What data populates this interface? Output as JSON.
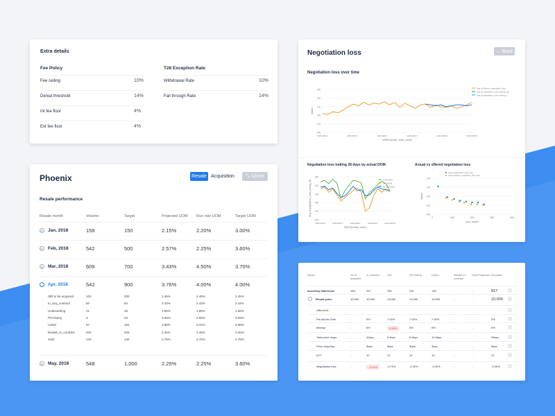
{
  "colors": {
    "accent": "#1f7ae8",
    "negative": "#d44a4a",
    "orange": "#f0a02c",
    "green": "#5cb85c",
    "teal": "#2aa7b8"
  },
  "extra": {
    "title": "Extra details",
    "fee_policy": "Fee Policy",
    "t28": "T28 Exception Rate",
    "left_rows": [
      {
        "label": "Fee ceiling",
        "value": "10%"
      },
      {
        "label": "Denial threshold",
        "value": "14%"
      },
      {
        "label": "Int fee floor",
        "value": "4%"
      },
      {
        "label": "Ext fee floor",
        "value": "4%"
      }
    ],
    "right_rows": [
      {
        "label": "Withdrawal Rate",
        "value": "10%"
      },
      {
        "label": "Fall through Rate",
        "value": "14%"
      }
    ]
  },
  "phoenix": {
    "title": "Phoenix",
    "tab_resale": "Resale",
    "tab_acquisition": "Acquisition",
    "close": "Close",
    "section": "Resale performance",
    "headers": [
      "Resale month",
      "Volume",
      "Target",
      "Projected UOM",
      "Run rate UOM",
      "Target UOM"
    ],
    "months": [
      {
        "name": "Jan, 2018",
        "cells": [
          "158",
          "150",
          "2.15%",
          "2.20%",
          "3.00%"
        ]
      },
      {
        "name": "Feb, 2018",
        "cells": [
          "542",
          "500",
          "2.57%",
          "2.25%",
          "3.60%"
        ]
      },
      {
        "name": "Mar, 2018",
        "cells": [
          "609",
          "700",
          "3.43%",
          "4.50%",
          "3.70%"
        ]
      },
      {
        "name": "Apr, 2018",
        "cells": [
          "542",
          "900",
          "3.76%",
          "4.00%",
          "4.00%"
        ]
      }
    ],
    "sub_rows": [
      {
        "label": "Still to be acquired",
        "cells": [
          "100",
          "200",
          "2.45%",
          "2.45%",
          "2.45%"
        ]
      },
      {
        "label": "In_acq_contract",
        "cells": [
          "50",
          "50",
          "2.43%",
          "2.43%",
          "2.43%"
        ]
      },
      {
        "label": "Underwriting",
        "cells": [
          "41",
          "28",
          "1.98%",
          "1.98%",
          "1.98%"
        ]
      },
      {
        "label": "Pre-listing",
        "cells": [
          "3",
          "23",
          "3.09%",
          "2.56%",
          "3.09%"
        ]
      },
      {
        "label": "Listed",
        "cells": [
          "67",
          "102",
          "3.98%",
          "3.44%",
          "3.98%"
        ]
      },
      {
        "label": "Resale_in_contract",
        "cells": [
          "203",
          "203",
          "2.46%",
          "2.46%",
          "2.46%"
        ]
      },
      {
        "label": "Sold",
        "cells": [
          "140",
          "140",
          "2.75%",
          "2.75%",
          "2.75%"
        ]
      }
    ],
    "may": {
      "name": "May, 2018",
      "cells": [
        "548",
        "1,000",
        "2.25%",
        "2.25%",
        "3.60%"
      ]
    }
  },
  "negotiation": {
    "title": "Negotiation loss",
    "back": "Back",
    "chart1_title": "Negotiation loss over time",
    "chart2_title": "Negotiation loss trailing 28 days by actual DOM",
    "chart3_title": "Actual vs offered negotiation loss"
  },
  "chart_data": [
    {
      "type": "line",
      "title": "Negotiation loss over time",
      "ylabel": "Values",
      "xlabel": "WEEK(resale_close_week)",
      "y_ticks": [
        "3%",
        "2%",
        "1%",
        "0%",
        "-1%",
        "-2%"
      ],
      "x_ticks": [
        "06/01/2017",
        "08/01/2017",
        "10/01/2017",
        "12/01/2017",
        "02/01/2018",
        "04/01/2018"
      ],
      "ylim": [
        -2,
        3
      ],
      "series": [
        {
          "name": "Avg of offered_negotiation_loss",
          "values": [
            0.2,
            0.1,
            0.4,
            0.3,
            0.6,
            1.0,
            1.3,
            1.1,
            1.5,
            1.2,
            1.4,
            1.3,
            1.6,
            1.2,
            1.5,
            0.9,
            1.4,
            1.1,
            0.8,
            1.2,
            1.3,
            0.9,
            1.2,
            1.0,
            0.9,
            1.1,
            0.8,
            1.0,
            1.2,
            1.5
          ]
        },
        {
          "name": "Avg of negotiation_loss_trailing_28",
          "values": [
            null,
            null,
            null,
            null,
            null,
            null,
            null,
            null,
            null,
            null,
            null,
            null,
            null,
            null,
            null,
            null,
            null,
            null,
            null,
            null,
            1.3,
            1.2,
            1.1,
            1.2,
            1.0,
            1.1,
            1.2,
            1.2,
            1.1,
            1.2
          ]
        },
        {
          "name": "Avg of negotiation_loss_trailing_7",
          "values": [
            null,
            null,
            null,
            null,
            null,
            null,
            null,
            null,
            null,
            null,
            null,
            null,
            null,
            null,
            null,
            null,
            null,
            null,
            null,
            null,
            null,
            null,
            null,
            null,
            null,
            null,
            null,
            null,
            null,
            null
          ]
        }
      ]
    },
    {
      "type": "line",
      "title": "Negotiation loss trailing 28 days by actual DOM",
      "ylabel": "Avg of negotiation_loss_trailing_28",
      "xlabel": "WEEK(resale_week)",
      "y_ticks": [
        "3%",
        "2%",
        "1%",
        "0%",
        "-1%",
        "-2%"
      ],
      "x_ticks": [
        "06/01/2017",
        "08/01/2017",
        "10/01/2017",
        "12/01/2017",
        "02/01/2018"
      ],
      "ylim": [
        -2,
        3
      ],
      "series": [
        {
          "name": "0-30 DOM",
          "values": [
            2.4,
            2.6,
            2.2,
            2.7,
            2.3,
            0.5,
            1.4,
            2.0,
            2.6,
            2.5,
            2.3,
            0.4,
            1.2,
            1.6,
            2.1,
            2.5,
            2.2,
            1.4
          ]
        },
        {
          "name": "30+ DOM",
          "values": [
            1.6,
            1.8,
            1.2,
            1.6,
            0.9,
            0.2,
            0.6,
            1.0,
            1.4,
            1.7,
            1.2,
            -1.0,
            -0.6,
            0.8,
            1.6,
            1.2,
            1.6,
            1.4
          ]
        },
        {
          "name": "60-100 DOM",
          "values": [
            1.8,
            1.9,
            1.5,
            1.7,
            1.1,
            0.6,
            0.8,
            1.3,
            1.9,
            1.4,
            1.5,
            0.8,
            0.9,
            1.4,
            1.8,
            1.6,
            1.5,
            1.3
          ]
        }
      ]
    },
    {
      "type": "scatter",
      "title": "Actual vs offered negotiation loss",
      "ylabel": "Values",
      "xlabel": "dom_bucket",
      "x_ticks": [
        "0",
        "100",
        "200",
        "300",
        "400"
      ],
      "y_ticks": [
        "2%",
        "1%",
        "0%",
        "-1%",
        "-2%"
      ],
      "xlim": [
        0,
        400
      ],
      "ylim": [
        -2,
        2
      ],
      "series": [
        {
          "name": "Avg of negotiation_loss_dom",
          "points": [
            [
              30,
              1.1
            ],
            [
              75,
              -0.1
            ],
            [
              110,
              -0.3
            ],
            [
              140,
              -0.5
            ],
            [
              170,
              -0.6
            ],
            [
              200,
              -0.7
            ],
            [
              230,
              -0.7
            ],
            [
              260,
              -0.9
            ]
          ]
        },
        {
          "name": "Avg of offered_negotiation_loss_dom",
          "points": [
            [
              70,
              -0.2
            ],
            [
              100,
              -0.4
            ],
            [
              135,
              -0.6
            ],
            [
              160,
              -0.7
            ],
            [
              195,
              -0.9
            ],
            [
              225,
              -0.9
            ],
            [
              255,
              -1.0
            ]
          ]
        }
      ]
    }
  ],
  "metrics": {
    "headers": [
      "Metric",
      "To be acquired",
      "In contract",
      "UW",
      "Pre-listing",
      "Listed",
      "Resale in contract",
      "Sold Projected",
      "All states"
    ],
    "rows": [
      {
        "label": "Accretory Gain/Loss",
        "cells": [
          "156",
          "347",
          "330",
          "292",
          "145",
          "-",
          "-",
          "817"
        ]
      },
      {
        "label": "Resale price",
        "cells": [
          "10,000",
          "10,000",
          "10,000",
          "10,000",
          "10,000",
          "-",
          "-",
          "10,000"
        ]
      },
      {
        "label": "Offers/LM",
        "cells": [
          "",
          "",
          "",
          "",
          "",
          "",
          "",
          ""
        ]
      },
      {
        "label": "Pre-list list Gain",
        "cells": [
          "-",
          "5%",
          "7.00%",
          "7.00%",
          "7.00%",
          "-",
          "-",
          "5%"
        ]
      },
      {
        "label": "Markup",
        "cells": [
          "-",
          "6%",
          "6.50%",
          "8%",
          "6%",
          "-",
          "-",
          "6%"
        ]
      },
      {
        "label": "Total price drops",
        "cells": [
          "-",
          "10bps",
          "5.0bps",
          "5.0bps",
          "12.0bps",
          "-",
          "-",
          "30bps"
        ]
      },
      {
        "label": "Price drop/day",
        "cells": [
          "-",
          "3bps",
          "3bps",
          "3bps",
          "3bps",
          "-",
          "-",
          "3bps"
        ]
      },
      {
        "label": "DTT",
        "cells": [
          "-",
          "10",
          "10",
          "10",
          "10",
          "-",
          "-",
          "10"
        ]
      },
      {
        "label": "Negotiation loss",
        "cells": [
          "-",
          "-3.10%",
          "-2.70%",
          "-2.30%",
          "-3.30%",
          "-",
          "-",
          "-3.30%"
        ]
      }
    ]
  }
}
